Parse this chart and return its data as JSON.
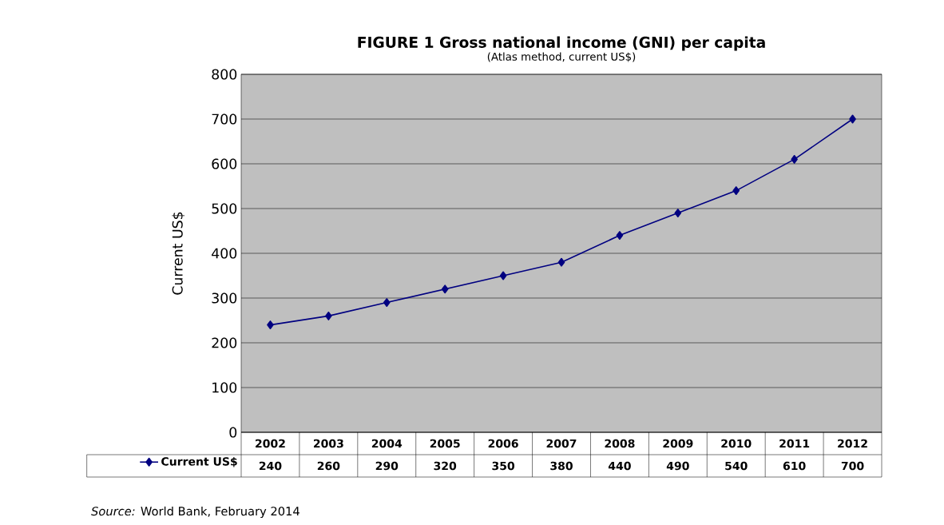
{
  "chart_data": {
    "type": "line",
    "title": "FIGURE 1 Gross national income (GNI) per capita",
    "subtitle": "(Atlas method, current US$)",
    "ylabel": "Current US$",
    "categories": [
      "2002",
      "2003",
      "2004",
      "2005",
      "2006",
      "2007",
      "2008",
      "2009",
      "2010",
      "2011",
      "2012"
    ],
    "series": [
      {
        "name": "Current US$",
        "color": "#000080",
        "values": [
          240,
          260,
          290,
          320,
          350,
          380,
          440,
          490,
          540,
          610,
          700
        ]
      }
    ],
    "ylim": [
      0,
      800
    ],
    "yticks": [
      0,
      100,
      200,
      300,
      400,
      500,
      600,
      700,
      800
    ],
    "grid": "y",
    "legend": "bottom",
    "marker": "diamond",
    "line_style": "solid",
    "data_labels": true,
    "annotations": [
      "*Source:* World Bank,  February 2014"
    ]
  }
}
